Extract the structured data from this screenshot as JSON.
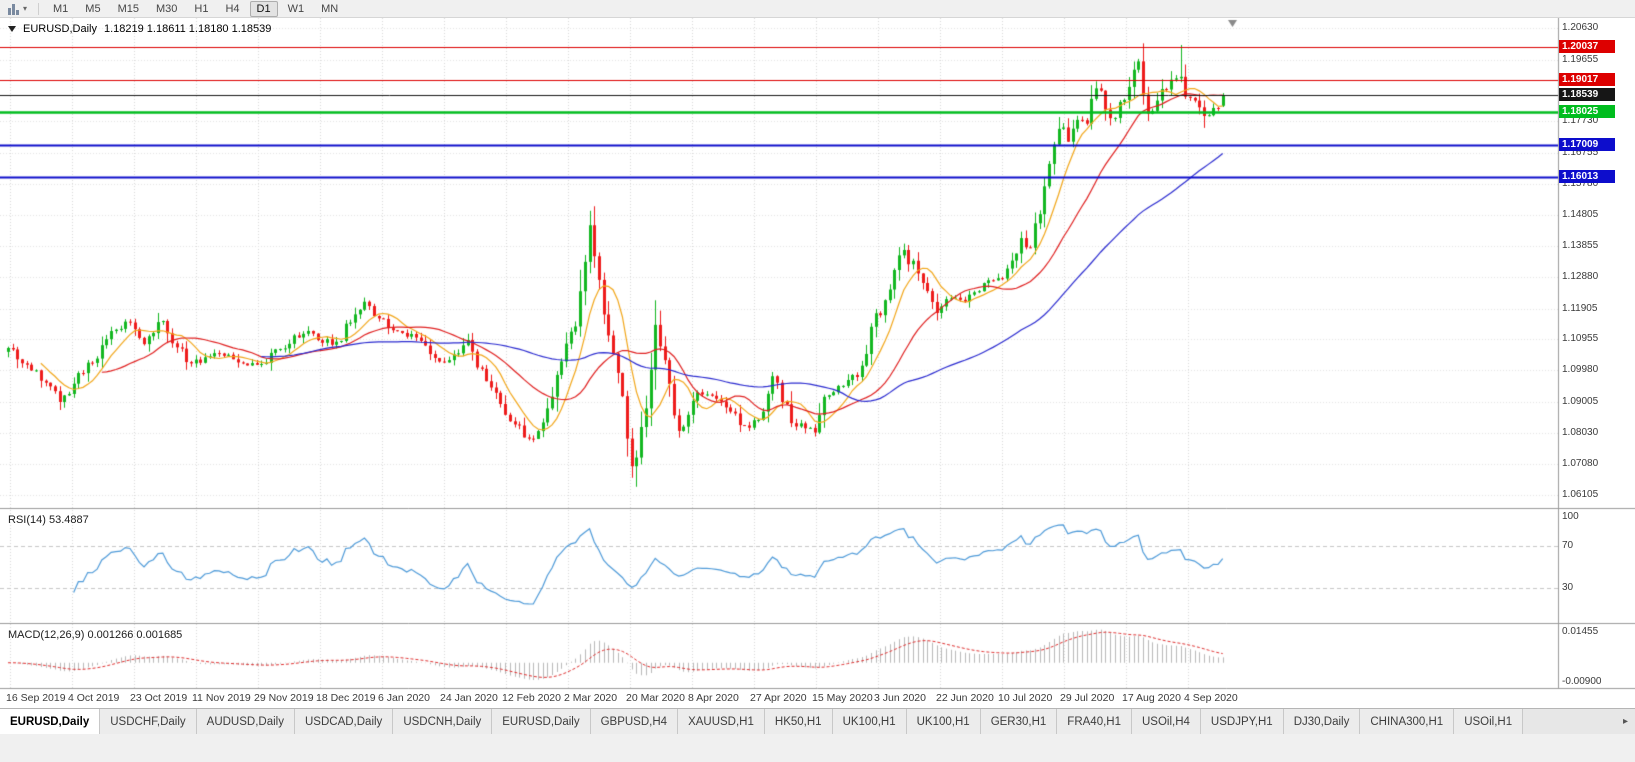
{
  "toolbar": {
    "timeframes": [
      "M1",
      "M5",
      "M15",
      "M30",
      "H1",
      "H4",
      "D1",
      "W1",
      "MN"
    ],
    "active_timeframe": "D1",
    "chart_type_icon": "candlestick-chart",
    "dropdown_icon": "caret-down"
  },
  "chart_header": {
    "symbol": "EURUSD,Daily",
    "ohlc": "1.18219 1.18611 1.18180 1.18539"
  },
  "indicators": {
    "rsi": {
      "name": "RSI(14)",
      "value": "53.4887",
      "axis": [
        "100",
        "70",
        "30"
      ],
      "color": "#4f9bd9"
    },
    "macd": {
      "name": "MACD(12,26,9)",
      "values": "0.001266 0.001685",
      "axis_max": "0.01455",
      "axis_min": "-0.00900",
      "histogram_color": "#b9b9b9",
      "signal_color": "#e03030"
    }
  },
  "tabs": {
    "active_index": 0,
    "scroll_right_icon": "chevron-right",
    "items": [
      "EURUSD,Daily",
      "USDCHF,Daily",
      "AUDUSD,Daily",
      "USDCAD,Daily",
      "USDCNH,Daily",
      "EURUSD,Daily",
      "GBPUSD,H4",
      "XAUUSD,H1",
      "HK50,H1",
      "UK100,H1",
      "UK100,H1",
      "GER30,H1",
      "FRA40,H1",
      "USOil,H4",
      "USDJPY,H1",
      "DJ30,Daily",
      "CHINA300,H1",
      "USOil,H1"
    ]
  },
  "chart_data": {
    "type": "candlestick",
    "symbol": "EURUSD",
    "timeframe": "Daily",
    "last": {
      "open": 1.18219,
      "high": 1.18611,
      "low": 1.1818,
      "close": 1.18539
    },
    "ylim": [
      1.057,
      1.2095
    ],
    "y_ticks": [
      "1.20630",
      "1.19655",
      "1.17730",
      "1.16755",
      "1.15780",
      "1.14805",
      "1.13855",
      "1.12880",
      "1.11905",
      "1.10955",
      "1.09980",
      "1.09005",
      "1.08030",
      "1.07080",
      "1.06105"
    ],
    "x_tick_labels": [
      "16 Sep 2019",
      "4 Oct 2019",
      "23 Oct 2019",
      "11 Nov 2019",
      "29 Nov 2019",
      "18 Dec 2019",
      "6 Jan 2020",
      "24 Jan 2020",
      "12 Feb 2020",
      "2 Mar 2020",
      "20 Mar 2020",
      "8 Apr 2020",
      "27 Apr 2020",
      "15 May 2020",
      "3 Jun 2020",
      "22 Jun 2020",
      "10 Jul 2020",
      "29 Jul 2020",
      "17 Aug 2020",
      "4 Sep 2020"
    ],
    "price_lines": [
      {
        "value": 1.20037,
        "label": "1.20037",
        "color": "#dd0000",
        "width": 1.2,
        "role": "resistance-line"
      },
      {
        "value": 1.19017,
        "label": "1.19017",
        "color": "#dd0000",
        "width": 1.2,
        "role": "resistance-line"
      },
      {
        "value": 1.18539,
        "label": "1.18539",
        "color": "#161616",
        "width": 1,
        "role": "bid-price-line"
      },
      {
        "value": 1.18025,
        "label": "1.18025",
        "color": "#00bd1e",
        "width": 2.4,
        "role": "support-line"
      },
      {
        "value": 1.17009,
        "label": "1.17009",
        "color": "#0d0dcc",
        "width": 2,
        "role": "support-line"
      },
      {
        "value": 1.16013,
        "label": "1.16013",
        "color": "#0d0dcc",
        "width": 2,
        "role": "support-line"
      }
    ],
    "num_candles": 260,
    "candle_up_color": "#13b721",
    "candle_down_color": "#ee1c1c",
    "moving_averages": [
      {
        "period": 8,
        "color": "#f2a71b",
        "name": "fast-ma"
      },
      {
        "period": 21,
        "color": "#e02020",
        "name": "medium-ma"
      },
      {
        "period": 55,
        "color": "#2b2bd0",
        "name": "slow-ma"
      }
    ],
    "rsi": {
      "period": 14,
      "current": 53.4887,
      "levels": [
        70,
        30
      ],
      "scale": [
        0,
        100
      ]
    },
    "macd": {
      "fast": 12,
      "slow": 26,
      "signal": 9,
      "current": [
        0.001266,
        0.001685
      ],
      "scale": [
        -0.009,
        0.01455
      ]
    },
    "close_anchors": [
      [
        0,
        1.1068
      ],
      [
        4,
        1.1016
      ],
      [
        8,
        1.096
      ],
      [
        11,
        1.09
      ],
      [
        15,
        1.099
      ],
      [
        19,
        1.1035
      ],
      [
        23,
        1.1125
      ],
      [
        25,
        1.115
      ],
      [
        29,
        1.108
      ],
      [
        33,
        1.1152
      ],
      [
        36,
        1.107
      ],
      [
        39,
        1.102
      ],
      [
        44,
        1.1052
      ],
      [
        49,
        1.1023
      ],
      [
        54,
        1.1018
      ],
      [
        58,
        1.1065
      ],
      [
        64,
        1.1121
      ],
      [
        69,
        1.1078
      ],
      [
        73,
        1.1147
      ],
      [
        76,
        1.1212
      ],
      [
        79,
        1.116
      ],
      [
        83,
        1.1121
      ],
      [
        88,
        1.109
      ],
      [
        93,
        1.1023
      ],
      [
        98,
        1.1093
      ],
      [
        103,
        1.0945
      ],
      [
        108,
        1.083
      ],
      [
        112,
        1.0785
      ],
      [
        115,
        1.088
      ],
      [
        118,
        1.1026
      ],
      [
        121,
        1.1135
      ],
      [
        124,
        1.145
      ],
      [
        126,
        1.128
      ],
      [
        128,
        1.1107
      ],
      [
        131,
        1.0918
      ],
      [
        133,
        1.07
      ],
      [
        134,
        1.0727
      ],
      [
        136,
        1.088
      ],
      [
        138,
        1.114
      ],
      [
        140,
        1.103
      ],
      [
        143,
        1.081
      ],
      [
        145,
        1.086
      ],
      [
        147,
        1.093
      ],
      [
        151,
        1.091
      ],
      [
        154,
        1.087
      ],
      [
        158,
        1.082
      ],
      [
        161,
        1.087
      ],
      [
        163,
        1.098
      ],
      [
        165,
        1.09
      ],
      [
        167,
        1.0834
      ],
      [
        170,
        1.0818
      ],
      [
        172,
        1.0805
      ],
      [
        174,
        1.0916
      ],
      [
        177,
        1.095
      ],
      [
        180,
        1.0984
      ],
      [
        182,
        1.1013
      ],
      [
        184,
        1.1134
      ],
      [
        186,
        1.117
      ],
      [
        188,
        1.125
      ],
      [
        191,
        1.1373
      ],
      [
        194,
        1.13
      ],
      [
        196,
        1.1245
      ],
      [
        198,
        1.1177
      ],
      [
        200,
        1.122
      ],
      [
        203,
        1.1218
      ],
      [
        205,
        1.1234
      ],
      [
        208,
        1.127
      ],
      [
        212,
        1.1284
      ],
      [
        214,
        1.134
      ],
      [
        216,
        1.141
      ],
      [
        218,
        1.138
      ],
      [
        221,
        1.1571
      ],
      [
        224,
        1.175
      ],
      [
        226,
        1.171
      ],
      [
        228,
        1.1778
      ],
      [
        230,
        1.1766
      ],
      [
        232,
        1.1876
      ],
      [
        234,
        1.181
      ],
      [
        236,
        1.1784
      ],
      [
        238,
        1.184
      ],
      [
        240,
        1.1934
      ],
      [
        241,
        1.196
      ],
      [
        243,
        1.1797
      ],
      [
        245,
        1.1838
      ],
      [
        248,
        1.1903
      ],
      [
        250,
        1.1912
      ],
      [
        251,
        1.185
      ],
      [
        253,
        1.1838
      ],
      [
        255,
        1.179
      ],
      [
        257,
        1.1815
      ],
      [
        259,
        1.18539
      ]
    ],
    "wick_overrides": {
      "124": {
        "high": 1.1495
      },
      "134": {
        "low": 1.0636
      },
      "250": {
        "high": 1.2011
      },
      "255": {
        "low": 1.1753
      }
    }
  }
}
